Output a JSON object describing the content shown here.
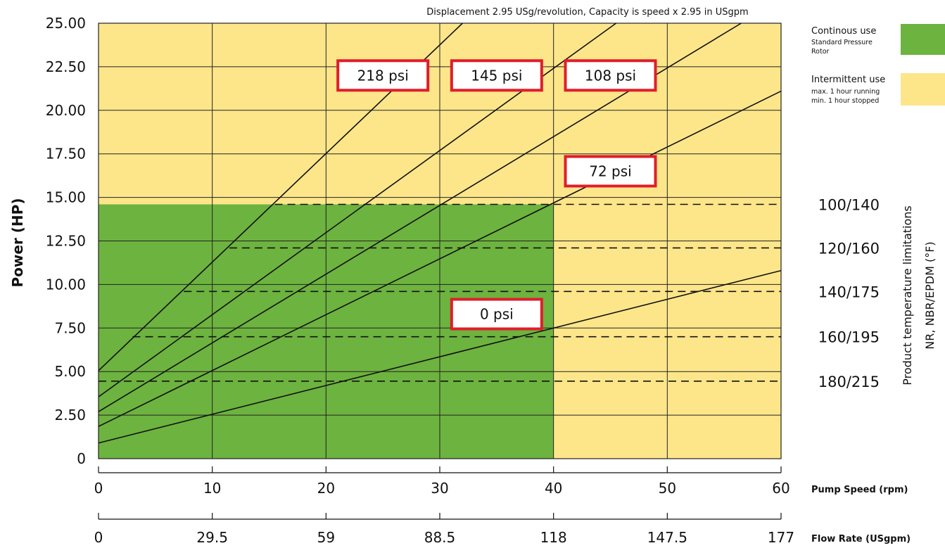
{
  "chart_data": {
    "type": "line",
    "top_note": "Displacement 2.95 USg/revolution, Capacity is speed x 2.95 in USgpm",
    "ylabel": "Power (HP)",
    "xlabel": "Pump Speed (rpm)",
    "x2label": "Flow Rate (USgpm)",
    "xlim": [
      0,
      60
    ],
    "ylim": [
      0,
      25
    ],
    "grid": true,
    "y_ticks": [
      "0",
      "2.50",
      "5.00",
      "7.50",
      "10.00",
      "12.50",
      "15.00",
      "17.50",
      "20.00",
      "22.50",
      "25.00"
    ],
    "y_tick_values": [
      0,
      2.5,
      5,
      7.5,
      10,
      12.5,
      15,
      17.5,
      20,
      22.5,
      25
    ],
    "x_ticks": [
      "0",
      "10",
      "20",
      "30",
      "40",
      "50",
      "60"
    ],
    "x_tick_values": [
      0,
      10,
      20,
      30,
      40,
      50,
      60
    ],
    "x2_ticks": [
      "0",
      "29.5",
      "59",
      "88.5",
      "118",
      "147.5",
      "177"
    ],
    "regions": {
      "continuous": {
        "color": "#6db33f",
        "x_max": 40,
        "y_max": 14.6
      },
      "intermittent": {
        "color": "#fde68a"
      }
    },
    "series": [
      {
        "name": "0 psi",
        "x": [
          0,
          60
        ],
        "y": [
          0.9,
          10.8
        ],
        "label_at": [
          35,
          8.3
        ]
      },
      {
        "name": "72 psi",
        "x": [
          0,
          60
        ],
        "y": [
          1.85,
          21.1
        ],
        "label_at": [
          45,
          16.5
        ]
      },
      {
        "name": "108 psi",
        "x": [
          0,
          56.5
        ],
        "y": [
          2.7,
          25
        ],
        "label_at": [
          45,
          22
        ]
      },
      {
        "name": "145 psi",
        "x": [
          0,
          45.5
        ],
        "y": [
          3.55,
          25
        ],
        "label_at": [
          35,
          22
        ]
      },
      {
        "name": "218 psi",
        "x": [
          0,
          32
        ],
        "y": [
          5.05,
          25
        ],
        "label_at": [
          25,
          22
        ]
      }
    ],
    "temperature_limits": {
      "title_line1": "Product temperature limitations",
      "title_line2": "NR, NBR/EPDM (°F)",
      "levels": [
        {
          "label": "100/140",
          "y": 14.6,
          "x_start": 15.5
        },
        {
          "label": "120/160",
          "y": 12.1,
          "x_start": 11.5
        },
        {
          "label": "140/175",
          "y": 9.6,
          "x_start": 7.5
        },
        {
          "label": "160/195",
          "y": 7.0,
          "x_start": 3
        },
        {
          "label": "180/215",
          "y": 4.45,
          "x_start": 0
        }
      ]
    },
    "legend": [
      {
        "title": "Continous use",
        "lines": [
          "Standard Pressure",
          "Rotor"
        ],
        "color": "#6db33f"
      },
      {
        "title": "Intermittent use",
        "lines": [
          "max. 1 hour running",
          "min. 1 hour stopped"
        ],
        "color": "#fde68a"
      }
    ]
  }
}
